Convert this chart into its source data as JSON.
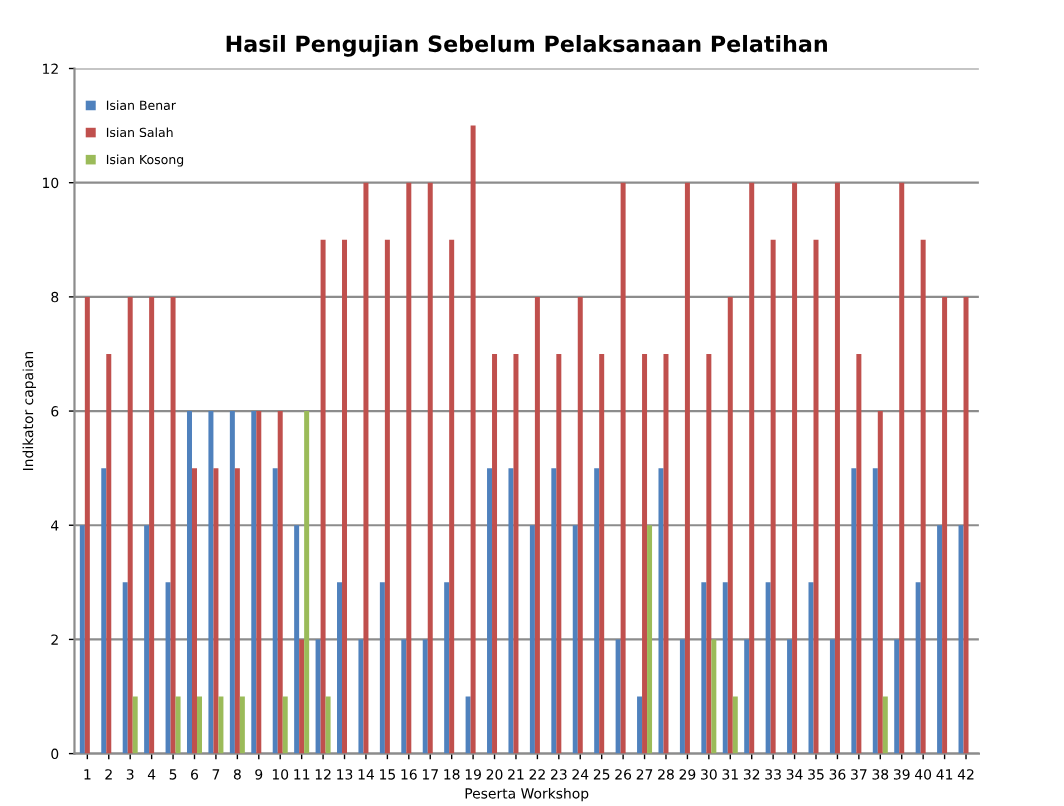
{
  "chart_data": {
    "type": "bar",
    "title": "Hasil Pengujian Sebelum Pelaksanaan Pelatihan",
    "xlabel": "Peserta Workshop",
    "ylabel": "Indikator capaian",
    "categories": [
      "1",
      "2",
      "3",
      "4",
      "5",
      "6",
      "7",
      "8",
      "9",
      "10",
      "11",
      "12",
      "13",
      "14",
      "15",
      "16",
      "17",
      "18",
      "19",
      "20",
      "21",
      "22",
      "23",
      "24",
      "25",
      "26",
      "27",
      "28",
      "29",
      "30",
      "31",
      "32",
      "33",
      "34",
      "35",
      "36",
      "37",
      "38",
      "39",
      "40",
      "41",
      "42"
    ],
    "series": [
      {
        "name": "Isian Benar",
        "color": "#4f81bd",
        "values": [
          4,
          5,
          3,
          4,
          3,
          6,
          6,
          6,
          6,
          5,
          4,
          2,
          3,
          2,
          3,
          2,
          2,
          3,
          1,
          5,
          5,
          4,
          5,
          4,
          5,
          2,
          1,
          5,
          2,
          3,
          3,
          2,
          3,
          2,
          3,
          2,
          5,
          5,
          2,
          3,
          4,
          4
        ]
      },
      {
        "name": "Isian Salah",
        "color": "#c0504d",
        "values": [
          8,
          7,
          8,
          8,
          8,
          5,
          5,
          5,
          6,
          6,
          2,
          9,
          9,
          10,
          9,
          10,
          10,
          9,
          11,
          7,
          7,
          8,
          7,
          8,
          7,
          10,
          7,
          7,
          10,
          7,
          8,
          10,
          9,
          10,
          9,
          10,
          7,
          6,
          10,
          9,
          8,
          8
        ]
      },
      {
        "name": "Isian Kosong",
        "color": "#9bbb59",
        "values": [
          0,
          0,
          1,
          0,
          1,
          1,
          1,
          1,
          0,
          1,
          6,
          1,
          0,
          0,
          0,
          0,
          0,
          0,
          0,
          0,
          0,
          0,
          0,
          0,
          0,
          0,
          4,
          0,
          0,
          2,
          1,
          0,
          0,
          0,
          0,
          0,
          0,
          1,
          0,
          0,
          0,
          0
        ]
      }
    ],
    "ylim": [
      0,
      12
    ],
    "yticks": [
      0,
      2,
      4,
      6,
      8,
      10,
      12
    ],
    "grid": "y",
    "legend": "top left"
  }
}
